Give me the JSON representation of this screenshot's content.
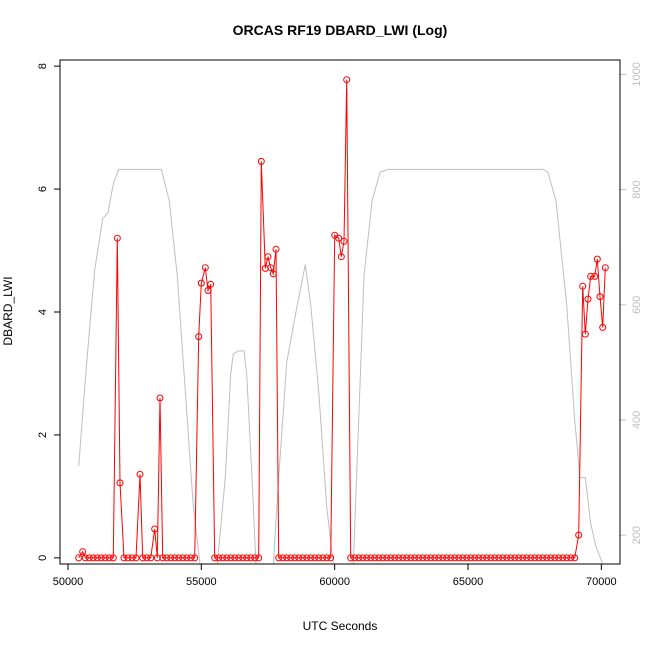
{
  "chart_data": {
    "type": "line",
    "title": "ORCAS RF19 DBARD_LWI (Log)",
    "xlabel": "UTC Seconds",
    "ylabel": "DBARD_LWI",
    "xlim": [
      49700,
      70700
    ],
    "ylim": [
      -0.1,
      8.1
    ],
    "x_ticks": [
      50000,
      55000,
      60000,
      65000,
      70000
    ],
    "y_ticks": [
      0,
      2,
      4,
      6,
      8
    ],
    "right_axis": {
      "ylim": [
        1025,
        150
      ],
      "reversed": true,
      "ticks": [
        200,
        400,
        600,
        800,
        1000
      ],
      "color": "#bebebe"
    },
    "series": [
      {
        "color": "#ff0000",
        "marker": "open-circle",
        "points": [
          [
            50400,
            0
          ],
          [
            50550,
            0.1
          ],
          [
            50650,
            0
          ],
          [
            50800,
            0
          ],
          [
            50950,
            0
          ],
          [
            51100,
            0
          ],
          [
            51250,
            0
          ],
          [
            51400,
            0
          ],
          [
            51550,
            0
          ],
          [
            51700,
            0
          ],
          [
            51850,
            5.2
          ],
          [
            51950,
            1.22
          ],
          [
            52100,
            0
          ],
          [
            52250,
            0
          ],
          [
            52400,
            0
          ],
          [
            52550,
            0
          ],
          [
            52700,
            1.36
          ],
          [
            52800,
            0
          ],
          [
            52950,
            0
          ],
          [
            53100,
            0
          ],
          [
            53250,
            0.47
          ],
          [
            53350,
            0
          ],
          [
            53450,
            2.6
          ],
          [
            53550,
            0
          ],
          [
            53700,
            0
          ],
          [
            53850,
            0
          ],
          [
            54000,
            0
          ],
          [
            54150,
            0
          ],
          [
            54300,
            0
          ],
          [
            54450,
            0
          ],
          [
            54600,
            0
          ],
          [
            54750,
            0
          ],
          [
            54900,
            3.6
          ],
          [
            55000,
            4.47
          ],
          [
            55150,
            4.72
          ],
          [
            55250,
            4.35
          ],
          [
            55350,
            4.45
          ],
          [
            55500,
            0
          ],
          [
            55650,
            0
          ],
          [
            55800,
            0
          ],
          [
            55950,
            0
          ],
          [
            56100,
            0
          ],
          [
            56250,
            0
          ],
          [
            56400,
            0
          ],
          [
            56550,
            0
          ],
          [
            56700,
            0
          ],
          [
            56850,
            0
          ],
          [
            57000,
            0
          ],
          [
            57150,
            0
          ],
          [
            57250,
            6.45
          ],
          [
            57400,
            4.71
          ],
          [
            57500,
            4.9
          ],
          [
            57600,
            4.72
          ],
          [
            57700,
            4.62
          ],
          [
            57800,
            5.02
          ],
          [
            57900,
            0
          ],
          [
            58050,
            0
          ],
          [
            58200,
            0
          ],
          [
            58350,
            0
          ],
          [
            58500,
            0
          ],
          [
            58650,
            0
          ],
          [
            58800,
            0
          ],
          [
            58950,
            0
          ],
          [
            59100,
            0
          ],
          [
            59250,
            0
          ],
          [
            59400,
            0
          ],
          [
            59550,
            0
          ],
          [
            59700,
            0
          ],
          [
            59850,
            0
          ],
          [
            60000,
            5.25
          ],
          [
            60150,
            5.2
          ],
          [
            60250,
            4.9
          ],
          [
            60350,
            5.15
          ],
          [
            60450,
            7.78
          ],
          [
            60600,
            0
          ],
          [
            60750,
            0
          ],
          [
            60900,
            0
          ],
          [
            61050,
            0
          ],
          [
            61200,
            0
          ],
          [
            61350,
            0
          ],
          [
            61500,
            0
          ],
          [
            61650,
            0
          ],
          [
            61800,
            0
          ],
          [
            61950,
            0
          ],
          [
            62100,
            0
          ],
          [
            62250,
            0
          ],
          [
            62400,
            0
          ],
          [
            62550,
            0
          ],
          [
            62700,
            0
          ],
          [
            62850,
            0
          ],
          [
            63000,
            0
          ],
          [
            63150,
            0
          ],
          [
            63300,
            0
          ],
          [
            63450,
            0
          ],
          [
            63600,
            0
          ],
          [
            63750,
            0
          ],
          [
            63900,
            0
          ],
          [
            64050,
            0
          ],
          [
            64200,
            0
          ],
          [
            64350,
            0
          ],
          [
            64500,
            0
          ],
          [
            64650,
            0
          ],
          [
            64800,
            0
          ],
          [
            64950,
            0
          ],
          [
            65100,
            0
          ],
          [
            65250,
            0
          ],
          [
            65400,
            0
          ],
          [
            65550,
            0
          ],
          [
            65700,
            0
          ],
          [
            65850,
            0
          ],
          [
            66000,
            0
          ],
          [
            66150,
            0
          ],
          [
            66300,
            0
          ],
          [
            66450,
            0
          ],
          [
            66600,
            0
          ],
          [
            66750,
            0
          ],
          [
            66900,
            0
          ],
          [
            67050,
            0
          ],
          [
            67200,
            0
          ],
          [
            67350,
            0
          ],
          [
            67500,
            0
          ],
          [
            67650,
            0
          ],
          [
            67800,
            0
          ],
          [
            67950,
            0
          ],
          [
            68100,
            0
          ],
          [
            68250,
            0
          ],
          [
            68400,
            0
          ],
          [
            68550,
            0
          ],
          [
            68700,
            0
          ],
          [
            68850,
            0
          ],
          [
            69000,
            0
          ],
          [
            69150,
            0.37
          ],
          [
            69300,
            4.42
          ],
          [
            69400,
            3.64
          ],
          [
            69500,
            4.21
          ],
          [
            69600,
            4.58
          ],
          [
            69750,
            4.58
          ],
          [
            69850,
            4.86
          ],
          [
            69950,
            4.25
          ],
          [
            70050,
            3.75
          ],
          [
            70150,
            4.72
          ]
        ]
      },
      {
        "color": "#bebebe",
        "marker": "none",
        "axis": "right",
        "points": [
          [
            50400,
            320
          ],
          [
            50700,
            500
          ],
          [
            51000,
            660
          ],
          [
            51300,
            750
          ],
          [
            51500,
            760
          ],
          [
            51700,
            810
          ],
          [
            51900,
            835
          ],
          [
            52200,
            835
          ],
          [
            52500,
            835
          ],
          [
            52800,
            835
          ],
          [
            53100,
            835
          ],
          [
            53500,
            835
          ],
          [
            53800,
            780
          ],
          [
            54100,
            650
          ],
          [
            54400,
            450
          ],
          [
            54700,
            250
          ],
          [
            54950,
            150
          ],
          [
            55300,
            150
          ],
          [
            55600,
            150
          ],
          [
            55900,
            300
          ],
          [
            56100,
            480
          ],
          [
            56200,
            515
          ],
          [
            56400,
            520
          ],
          [
            56600,
            520
          ],
          [
            56700,
            480
          ],
          [
            56900,
            300
          ],
          [
            57050,
            150
          ],
          [
            57400,
            150
          ],
          [
            57700,
            150
          ],
          [
            57900,
            300
          ],
          [
            58200,
            500
          ],
          [
            58600,
            600
          ],
          [
            58900,
            670
          ],
          [
            59100,
            600
          ],
          [
            59400,
            450
          ],
          [
            59700,
            250
          ],
          [
            59950,
            150
          ],
          [
            60300,
            150
          ],
          [
            60700,
            150
          ],
          [
            60900,
            400
          ],
          [
            61100,
            650
          ],
          [
            61400,
            780
          ],
          [
            61700,
            830
          ],
          [
            62000,
            835
          ],
          [
            63000,
            835
          ],
          [
            64000,
            835
          ],
          [
            65000,
            835
          ],
          [
            66000,
            835
          ],
          [
            67000,
            835
          ],
          [
            67800,
            835
          ],
          [
            68000,
            830
          ],
          [
            68300,
            780
          ],
          [
            68700,
            600
          ],
          [
            69000,
            400
          ],
          [
            69200,
            300
          ],
          [
            69400,
            300
          ],
          [
            69600,
            220
          ],
          [
            69800,
            180
          ],
          [
            70050,
            150
          ]
        ]
      }
    ]
  }
}
